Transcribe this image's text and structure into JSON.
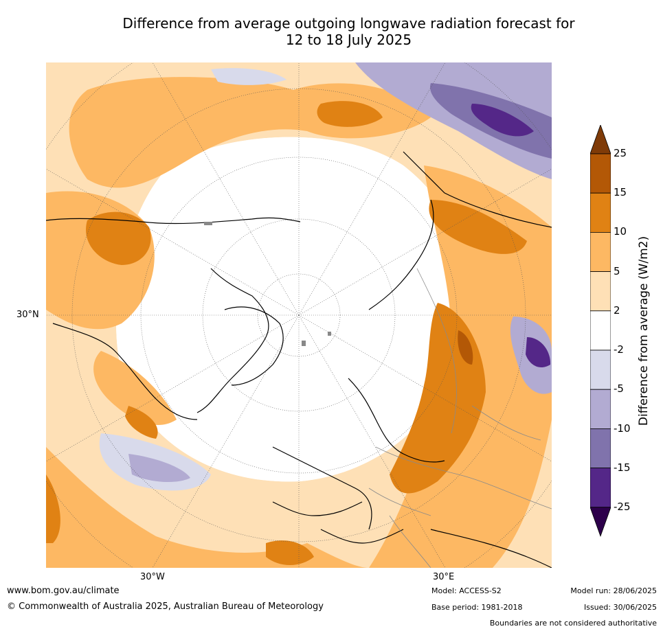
{
  "title": {
    "line1": "Difference from average outgoing longwave radiation forecast for",
    "line2": "12 to 18 July 2025"
  },
  "map": {
    "projection": "north-polar-stereographic",
    "lat_label": "30°N",
    "lon_labels": [
      "30°W",
      "30°E"
    ],
    "coastline_color": "#000000",
    "border_color": "#8a8a8a",
    "graticule_color": "#555555"
  },
  "colorbar": {
    "title": "Difference from average (W/m2)",
    "tick_labels": [
      "25",
      "15",
      "10",
      "5",
      "2",
      "-2",
      "-5",
      "-10",
      "-15",
      "-25"
    ],
    "bins": [
      {
        "range": ">25",
        "color": "#7f3b08"
      },
      {
        "range": "15 to 25",
        "color": "#b35806"
      },
      {
        "range": "10 to 15",
        "color": "#e08214"
      },
      {
        "range": "5 to 10",
        "color": "#fdb863"
      },
      {
        "range": "2 to 5",
        "color": "#fee0b6"
      },
      {
        "range": "-2 to 2",
        "color": "#ffffff"
      },
      {
        "range": "-5 to -2",
        "color": "#d8daeb"
      },
      {
        "range": "-10 to -5",
        "color": "#b2abd2"
      },
      {
        "range": "-15 to -10",
        "color": "#8073ac"
      },
      {
        "range": "-25 to -15",
        "color": "#542788"
      },
      {
        "range": "<-25",
        "color": "#2d004b"
      }
    ]
  },
  "footer": {
    "url": "www.bom.gov.au/climate",
    "copyright": "© Commonwealth of Australia 2025, Australian Bureau of Meteorology",
    "model": "Model: ACCESS-S2",
    "base_period": "Base period: 1981-2018",
    "model_run": "Model run: 28/06/2025",
    "issued": "Issued: 30/06/2025",
    "disclaimer": "Boundaries are not considered authoritative"
  }
}
